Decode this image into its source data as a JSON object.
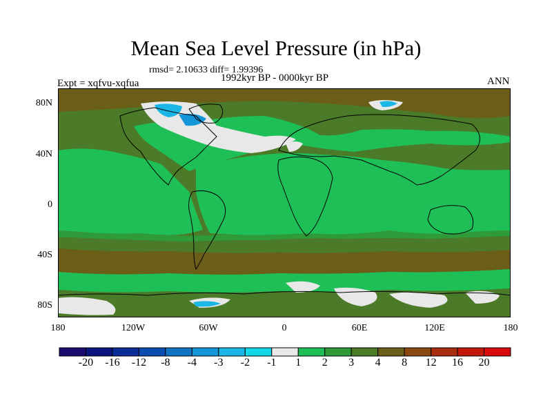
{
  "title": "Mean Sea Level Pressure (in hPa)",
  "stats": "rmsd= 2.10633 diff= 1.99396",
  "period": "1992kyr BP - 0000kyr BP",
  "experiment": "Expt = xqfvu-xqfua",
  "season": "ANN",
  "lat_labels": [
    "80N",
    "40N",
    "0",
    "40S",
    "80S"
  ],
  "lon_labels": [
    "180",
    "120W",
    "60W",
    "0",
    "60E",
    "120E",
    "180"
  ],
  "colorbar": {
    "labels": [
      "-20",
      "-16",
      "-12",
      "-8",
      "-4",
      "-3",
      "-2",
      "-1",
      "1",
      "2",
      "3",
      "4",
      "8",
      "12",
      "16",
      "20"
    ],
    "colors": [
      "#1a0a70",
      "#08157f",
      "#0a2d9a",
      "#0a4db2",
      "#0f74c4",
      "#1596d8",
      "#1ab7e6",
      "#10d8e8",
      "#e8e8e8",
      "#1fbf57",
      "#2f9a3a",
      "#4b7a28",
      "#6b5e18",
      "#8a4812",
      "#a82d0f",
      "#c4170c",
      "#d80a0a"
    ]
  },
  "colors": {
    "dark_olive": "#4b7a28",
    "mid_green": "#2f9a3a",
    "bright_green": "#1fbf57",
    "brown": "#6b5e18",
    "white": "#e8e8e8"
  }
}
